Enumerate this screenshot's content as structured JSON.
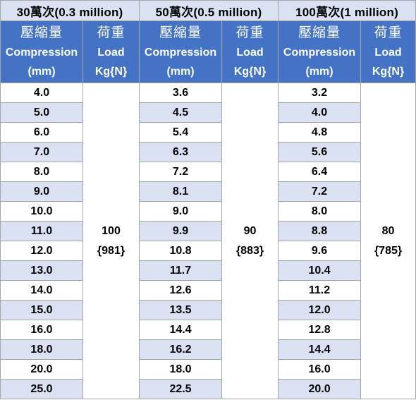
{
  "groups": [
    {
      "title": "30萬次(0.3 million)"
    },
    {
      "title": "50萬次(0.5 million)"
    },
    {
      "title": "100萬次(1 million)"
    }
  ],
  "headers": {
    "compression": {
      "zh": "壓縮量",
      "en": "Compression",
      "unit": "(mm)"
    },
    "load": {
      "zh": "荷重",
      "en": "Load",
      "unit": "Kg{N}"
    }
  },
  "loads": [
    {
      "kg": "100",
      "n": "{981}"
    },
    {
      "kg": "90",
      "n": "{883}"
    },
    {
      "kg": "80",
      "n": "{785}"
    }
  ],
  "rows": [
    [
      "4.0",
      "3.6",
      "3.2"
    ],
    [
      "5.0",
      "4.5",
      "4.0"
    ],
    [
      "6.0",
      "5.4",
      "4.8"
    ],
    [
      "7.0",
      "6.3",
      "5.6"
    ],
    [
      "8.0",
      "7.2",
      "6.4"
    ],
    [
      "9.0",
      "8.1",
      "7.2"
    ],
    [
      "10.0",
      "9.0",
      "8.0"
    ],
    [
      "11.0",
      "9.9",
      "8.8"
    ],
    [
      "12.0",
      "10.8",
      "9.6"
    ],
    [
      "13.0",
      "11.7",
      "10.4"
    ],
    [
      "14.0",
      "12.6",
      "11.2"
    ],
    [
      "15.0",
      "13.5",
      "12.0"
    ],
    [
      "16.0",
      "14.4",
      "12.8"
    ],
    [
      "18.0",
      "16.2",
      "14.4"
    ],
    [
      "20.0",
      "18.0",
      "16.0"
    ],
    [
      "25.0",
      "22.5",
      "20.0"
    ]
  ]
}
